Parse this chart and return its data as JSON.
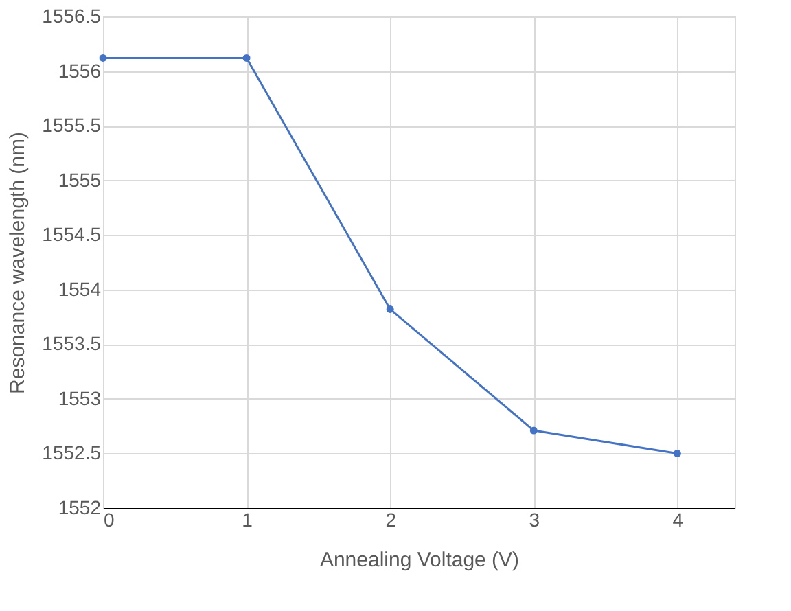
{
  "chart_data": {
    "type": "line",
    "xlabel": "Annealing Voltage (V)",
    "ylabel": "Resonance wavelength (nm)",
    "x": [
      0,
      1,
      2,
      3,
      4
    ],
    "series": [
      {
        "color": "#4472c4",
        "values": [
          1556.12,
          1556.12,
          1553.82,
          1552.71,
          1552.5
        ]
      }
    ],
    "xlim": [
      0,
      4.4
    ],
    "xticks": [
      0,
      1,
      2,
      3,
      4
    ],
    "ylim": [
      1552,
      1556.5
    ],
    "yticks": [
      1552,
      1552.5,
      1553,
      1553.5,
      1554,
      1554.5,
      1555,
      1555.5,
      1556,
      1556.5
    ],
    "grid": true,
    "marker": "circle",
    "line_style": "solid"
  }
}
